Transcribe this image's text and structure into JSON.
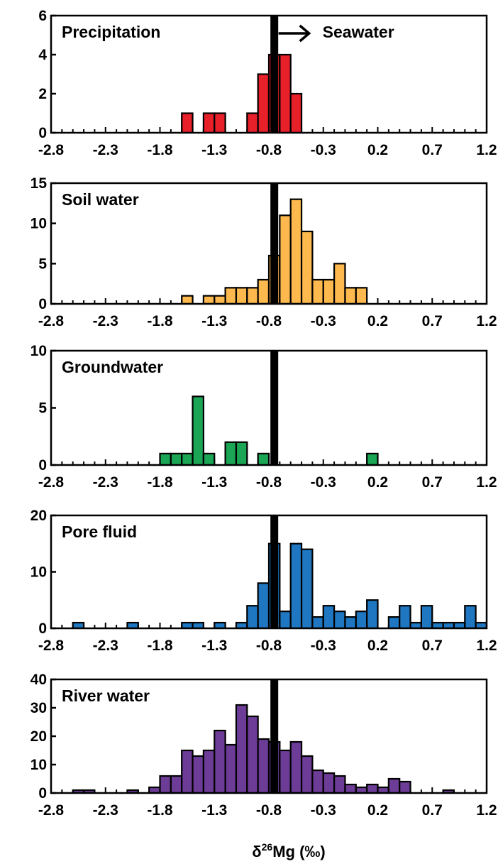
{
  "figure": {
    "xlabel_prefix": "δ",
    "xlabel_sup": "26",
    "xlabel_rest": "Mg (‰)"
  },
  "chart_data": [
    {
      "type": "bar",
      "title": "Precipitation",
      "annotation": "Seawater",
      "reference_line_x": -0.75,
      "bin_width": 0.1,
      "xlim": [
        -2.8,
        1.2
      ],
      "xticks": [
        "-2.8",
        "-2.3",
        "-1.8",
        "-1.3",
        "-0.8",
        "-0.3",
        "0.2",
        "0.7",
        "1.2"
      ],
      "ylim": [
        0,
        6
      ],
      "yticks": [
        "0",
        "2",
        "4",
        "6"
      ],
      "color": "#e8202a",
      "bins": [
        {
          "x": -1.55,
          "y": 1
        },
        {
          "x": -1.35,
          "y": 1
        },
        {
          "x": -1.25,
          "y": 1
        },
        {
          "x": -0.95,
          "y": 1
        },
        {
          "x": -0.85,
          "y": 3
        },
        {
          "x": -0.75,
          "y": 4
        },
        {
          "x": -0.65,
          "y": 4
        },
        {
          "x": -0.55,
          "y": 2
        }
      ]
    },
    {
      "type": "bar",
      "title": "Soil water",
      "reference_line_x": -0.75,
      "bin_width": 0.1,
      "xlim": [
        -2.8,
        1.2
      ],
      "xticks": [
        "-2.8",
        "-2.3",
        "-1.8",
        "-1.3",
        "-0.8",
        "-0.3",
        "0.2",
        "0.7",
        "1.2"
      ],
      "ylim": [
        0,
        15
      ],
      "yticks": [
        "0",
        "5",
        "10",
        "15"
      ],
      "color": "#fdb94e",
      "bins": [
        {
          "x": -1.55,
          "y": 1
        },
        {
          "x": -1.35,
          "y": 1
        },
        {
          "x": -1.25,
          "y": 1
        },
        {
          "x": -1.15,
          "y": 2
        },
        {
          "x": -1.05,
          "y": 2
        },
        {
          "x": -0.95,
          "y": 2
        },
        {
          "x": -0.85,
          "y": 3
        },
        {
          "x": -0.75,
          "y": 6
        },
        {
          "x": -0.65,
          "y": 11
        },
        {
          "x": -0.55,
          "y": 13
        },
        {
          "x": -0.45,
          "y": 9
        },
        {
          "x": -0.35,
          "y": 3
        },
        {
          "x": -0.25,
          "y": 3
        },
        {
          "x": -0.15,
          "y": 5
        },
        {
          "x": -0.05,
          "y": 2
        },
        {
          "x": 0.05,
          "y": 2
        }
      ]
    },
    {
      "type": "bar",
      "title": "Groundwater",
      "reference_line_x": -0.75,
      "bin_width": 0.1,
      "xlim": [
        -2.8,
        1.2
      ],
      "xticks": [
        "-2.8",
        "-2.3",
        "-1.8",
        "-1.3",
        "-0.8",
        "-0.3",
        "0.2",
        "0.7",
        "1.2"
      ],
      "ylim": [
        0,
        10
      ],
      "yticks": [
        "0",
        "5",
        "10"
      ],
      "color": "#1aa655",
      "bins": [
        {
          "x": -1.75,
          "y": 1
        },
        {
          "x": -1.65,
          "y": 1
        },
        {
          "x": -1.55,
          "y": 1
        },
        {
          "x": -1.45,
          "y": 6
        },
        {
          "x": -1.35,
          "y": 1
        },
        {
          "x": -1.15,
          "y": 2
        },
        {
          "x": -1.05,
          "y": 2
        },
        {
          "x": -0.85,
          "y": 1
        },
        {
          "x": 0.15,
          "y": 1
        }
      ]
    },
    {
      "type": "bar",
      "title": "Pore fluid",
      "reference_line_x": -0.75,
      "bin_width": 0.1,
      "xlim": [
        -2.8,
        1.2
      ],
      "xticks": [
        "-2.8",
        "-2.3",
        "-1.8",
        "-1.3",
        "-0.8",
        "-0.3",
        "0.2",
        "0.7",
        "1.2"
      ],
      "ylim": [
        0,
        20
      ],
      "yticks": [
        "0",
        "10",
        "20"
      ],
      "color": "#1f77c1",
      "bins": [
        {
          "x": -2.55,
          "y": 1
        },
        {
          "x": -2.05,
          "y": 1
        },
        {
          "x": -1.55,
          "y": 1
        },
        {
          "x": -1.45,
          "y": 1
        },
        {
          "x": -1.25,
          "y": 1
        },
        {
          "x": -1.05,
          "y": 1
        },
        {
          "x": -0.95,
          "y": 4
        },
        {
          "x": -0.85,
          "y": 8
        },
        {
          "x": -0.75,
          "y": 15
        },
        {
          "x": -0.65,
          "y": 3
        },
        {
          "x": -0.55,
          "y": 15
        },
        {
          "x": -0.45,
          "y": 14
        },
        {
          "x": -0.35,
          "y": 2
        },
        {
          "x": -0.25,
          "y": 4
        },
        {
          "x": -0.15,
          "y": 3
        },
        {
          "x": -0.05,
          "y": 2
        },
        {
          "x": 0.05,
          "y": 3
        },
        {
          "x": 0.15,
          "y": 5
        },
        {
          "x": 0.35,
          "y": 2
        },
        {
          "x": 0.45,
          "y": 4
        },
        {
          "x": 0.55,
          "y": 1
        },
        {
          "x": 0.65,
          "y": 4
        },
        {
          "x": 0.75,
          "y": 1
        },
        {
          "x": 0.85,
          "y": 1
        },
        {
          "x": 0.95,
          "y": 1
        },
        {
          "x": 1.05,
          "y": 4
        },
        {
          "x": 1.15,
          "y": 1
        },
        {
          "x": 1.25,
          "y": 1
        }
      ]
    },
    {
      "type": "bar",
      "title": "River water",
      "reference_line_x": -0.75,
      "bin_width": 0.1,
      "xlim": [
        -2.8,
        1.2
      ],
      "xticks": [
        "-2.8",
        "-2.3",
        "-1.8",
        "-1.3",
        "-0.8",
        "-0.3",
        "0.2",
        "0.7",
        "1.2"
      ],
      "ylim": [
        0,
        40
      ],
      "yticks": [
        "0",
        "10",
        "20",
        "30",
        "40"
      ],
      "color": "#6d3c97",
      "bins": [
        {
          "x": -2.55,
          "y": 1
        },
        {
          "x": -2.45,
          "y": 1
        },
        {
          "x": -2.05,
          "y": 1
        },
        {
          "x": -1.85,
          "y": 2
        },
        {
          "x": -1.75,
          "y": 6
        },
        {
          "x": -1.65,
          "y": 6
        },
        {
          "x": -1.55,
          "y": 15
        },
        {
          "x": -1.45,
          "y": 13
        },
        {
          "x": -1.35,
          "y": 15
        },
        {
          "x": -1.25,
          "y": 22
        },
        {
          "x": -1.15,
          "y": 17
        },
        {
          "x": -1.05,
          "y": 31
        },
        {
          "x": -0.95,
          "y": 27
        },
        {
          "x": -0.85,
          "y": 19
        },
        {
          "x": -0.75,
          "y": 18
        },
        {
          "x": -0.65,
          "y": 15
        },
        {
          "x": -0.55,
          "y": 18
        },
        {
          "x": -0.45,
          "y": 13
        },
        {
          "x": -0.35,
          "y": 8
        },
        {
          "x": -0.25,
          "y": 7
        },
        {
          "x": -0.15,
          "y": 6
        },
        {
          "x": -0.05,
          "y": 3
        },
        {
          "x": 0.05,
          "y": 2
        },
        {
          "x": 0.15,
          "y": 3
        },
        {
          "x": 0.25,
          "y": 2
        },
        {
          "x": 0.35,
          "y": 5
        },
        {
          "x": 0.45,
          "y": 4
        },
        {
          "x": 0.85,
          "y": 1
        }
      ]
    }
  ]
}
